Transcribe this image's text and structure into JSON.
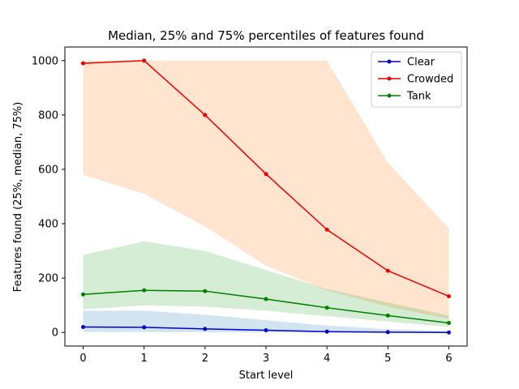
{
  "chart_data": {
    "type": "line",
    "title": "Median, 25% and 75% percentiles of features found",
    "xlabel": "Start level",
    "ylabel": "Features found (25%, median, 75%)",
    "x": [
      0,
      1,
      2,
      3,
      4,
      5,
      6
    ],
    "xlim": [
      -0.3,
      6.3
    ],
    "ylim": [
      -50,
      1050
    ],
    "xticks": [
      "0",
      "1",
      "2",
      "3",
      "4",
      "5",
      "6"
    ],
    "yticks": [
      0,
      200,
      400,
      600,
      800,
      1000
    ],
    "ytick_labels": [
      "0",
      "200",
      "400",
      "600",
      "800",
      "1000"
    ],
    "legend_position": "top-right",
    "grid": false,
    "series": [
      {
        "name": "Clear",
        "color": "#0000cc",
        "band_color": "#1f77b4",
        "median": [
          20,
          19,
          13,
          8,
          3,
          1,
          0
        ],
        "p25": [
          2,
          2,
          1,
          0,
          0,
          0,
          0
        ],
        "p75": [
          80,
          80,
          65,
          45,
          25,
          12,
          5
        ]
      },
      {
        "name": "Crowded",
        "color": "#ee0000",
        "band_color": "#ff7f0e",
        "median": [
          990,
          1000,
          800,
          583,
          378,
          227,
          133
        ],
        "p25": [
          580,
          510,
          390,
          245,
          155,
          95,
          50
        ],
        "p75": [
          1000,
          1000,
          1000,
          1000,
          1000,
          625,
          383
        ]
      },
      {
        "name": "Tank",
        "color": "#008000",
        "band_color": "#2ca02c",
        "median": [
          140,
          155,
          152,
          123,
          91,
          62,
          35
        ],
        "p25": [
          85,
          100,
          95,
          80,
          60,
          40,
          20
        ],
        "p75": [
          285,
          335,
          300,
          230,
          160,
          110,
          62
        ]
      }
    ]
  }
}
